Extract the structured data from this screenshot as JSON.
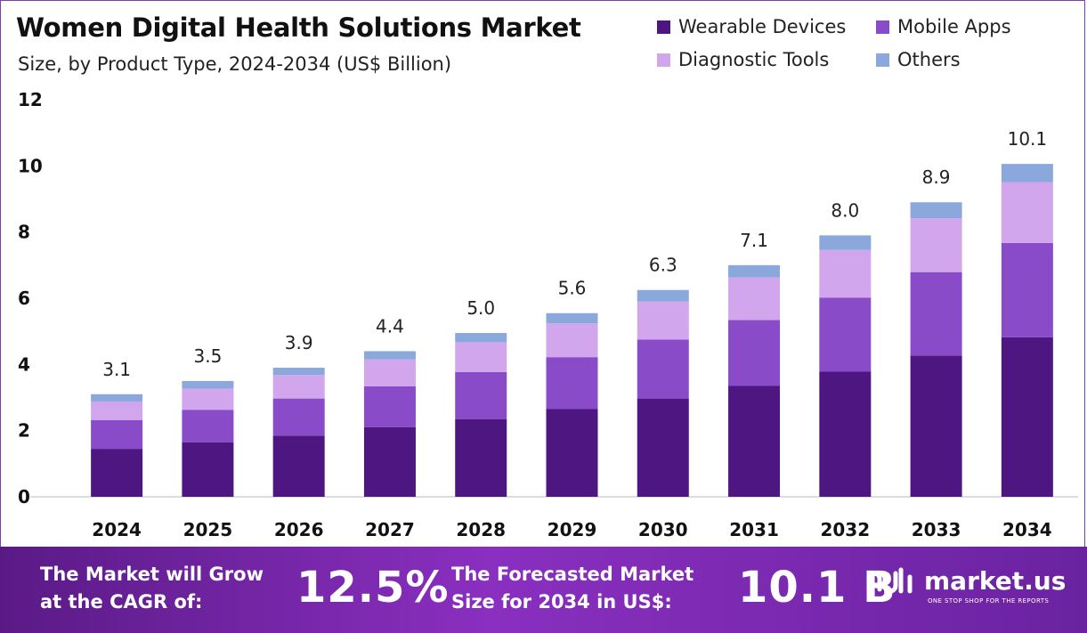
{
  "chart_data": {
    "type": "bar",
    "stacked": true,
    "title": "Women Digital Health Solutions Market",
    "subtitle": "Size, by Product Type, 2024-2034 (US$ Billion)",
    "categories": [
      "2024",
      "2025",
      "2026",
      "2027",
      "2028",
      "2029",
      "2030",
      "2031",
      "2032",
      "2033",
      "2034"
    ],
    "series": [
      {
        "name": "Wearable Devices",
        "color": "#4e1680",
        "values": [
          1.45,
          1.65,
          1.85,
          2.1,
          2.35,
          2.65,
          2.97,
          3.35,
          3.78,
          4.27,
          4.82
        ]
      },
      {
        "name": "Mobile Apps",
        "color": "#8a4bc9",
        "values": [
          0.87,
          0.98,
          1.12,
          1.24,
          1.42,
          1.57,
          1.78,
          1.99,
          2.24,
          2.52,
          2.85
        ]
      },
      {
        "name": "Diagnostic Tools",
        "color": "#d2a6ec",
        "values": [
          0.56,
          0.64,
          0.71,
          0.81,
          0.9,
          1.02,
          1.15,
          1.29,
          1.44,
          1.63,
          1.84
        ]
      },
      {
        "name": "Others",
        "color": "#8ba8dc",
        "values": [
          0.22,
          0.23,
          0.22,
          0.25,
          0.28,
          0.31,
          0.35,
          0.37,
          0.44,
          0.48,
          0.55
        ]
      }
    ],
    "totals": [
      "3.1",
      "3.5",
      "3.9",
      "4.4",
      "5.0",
      "5.6",
      "6.3",
      "7.1",
      "8.0",
      "8.9",
      "10.1"
    ],
    "ylim": [
      0,
      12
    ],
    "yticks": [
      "0",
      "2",
      "4",
      "6",
      "8",
      "10",
      "12"
    ],
    "legend_position": "top-right",
    "grid": false
  },
  "footer": {
    "cagr_label_line1": "The Market will Grow",
    "cagr_label_line2": "at the CAGR of:",
    "cagr_value": "12.5%",
    "forecast_label_line1": "The Forecasted Market",
    "forecast_label_line2": "Size for 2034 in US$:",
    "forecast_value": "10.1 B",
    "brand_name": "market.us",
    "brand_tagline": "ONE STOP SHOP FOR THE REPORTS"
  }
}
